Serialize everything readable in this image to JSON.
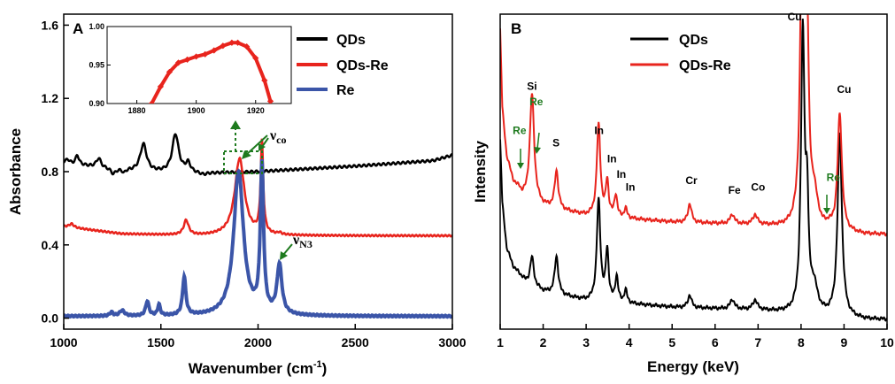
{
  "colors": {
    "black": "#000000",
    "red": "#e8241d",
    "blue": "#3b55a8",
    "green": "#1e7a1e"
  },
  "chart_data": [
    {
      "panel": "A",
      "type": "line",
      "xlabel": "Wavenumber (cm",
      "xlabel_sup": "-1",
      "xlabel_end": ")",
      "ylabel": "Absorbance",
      "xlim": [
        1000,
        3000
      ],
      "ylim": [
        -0.06,
        1.66
      ],
      "xticks": [
        "1000",
        "1500",
        "2000",
        "2500",
        "3000"
      ],
      "yticks": [
        "0.0",
        "0.4",
        "0.8",
        "1.2",
        "1.6"
      ],
      "legend_position": "top-right",
      "series": [
        {
          "name": "QDs",
          "color": "#000000",
          "baseline": [
            [
              1000,
              0.85
            ],
            [
              1200,
              0.82
            ],
            [
              1400,
              0.8
            ],
            [
              1700,
              0.79
            ],
            [
              2000,
              0.8
            ],
            [
              2500,
              0.83
            ],
            [
              2900,
              0.86
            ],
            [
              3000,
              0.89
            ]
          ],
          "peaks": [
            [
              1020,
              0.02,
              10
            ],
            [
              1070,
              0.05,
              10
            ],
            [
              1180,
              0.05,
              15
            ],
            [
              1255,
              -0.03,
              15
            ],
            [
              1310,
              -0.02,
              10
            ],
            [
              1410,
              0.15,
              20
            ],
            [
              1575,
              0.21,
              20
            ],
            [
              1640,
              0.05,
              15
            ],
            [
              1720,
              -0.01,
              20
            ]
          ]
        },
        {
          "name": "QDs-Re",
          "color": "#e8241d",
          "baseline": [
            [
              1000,
              0.5
            ],
            [
              1150,
              0.48
            ],
            [
              1300,
              0.46
            ],
            [
              1700,
              0.45
            ],
            [
              2300,
              0.45
            ],
            [
              3000,
              0.45
            ]
          ],
          "peaks": [
            [
              1040,
              0.02,
              15
            ],
            [
              1630,
              0.08,
              15
            ],
            [
              1905,
              0.42,
              30
            ],
            [
              2020,
              0.5,
              8
            ],
            [
              2110,
              0.01,
              10
            ]
          ]
        },
        {
          "name": "Re",
          "color": "#3b55a8",
          "baseline": [
            [
              1000,
              0.01
            ],
            [
              3000,
              0.01
            ]
          ],
          "peaks": [
            [
              1245,
              0.02,
              10
            ],
            [
              1300,
              0.03,
              15
            ],
            [
              1430,
              0.08,
              10
            ],
            [
              1490,
              0.06,
              8
            ],
            [
              1620,
              0.21,
              10
            ],
            [
              1900,
              0.79,
              30
            ],
            [
              2020,
              0.8,
              10
            ],
            [
              2110,
              0.27,
              15
            ]
          ]
        }
      ],
      "annotations": {
        "nu_co": "ν",
        "nu_co_sub": "co",
        "nu_n3": "ν",
        "nu_n3_sub": "N3"
      },
      "inset": {
        "type": "scatter",
        "xlim": [
          1870,
          1932
        ],
        "ylim": [
          0.9,
          1.0
        ],
        "xticks": [
          "1880",
          "1900",
          "1920"
        ],
        "yticks": [
          "0.90",
          "0.95",
          "1.00"
        ],
        "x": [
          1885,
          1888,
          1891,
          1894,
          1897,
          1900,
          1903,
          1906,
          1909,
          1912,
          1914,
          1917,
          1920,
          1923,
          1925
        ],
        "y": [
          0.9,
          0.922,
          0.941,
          0.953,
          0.957,
          0.961,
          0.964,
          0.969,
          0.975,
          0.979,
          0.979,
          0.974,
          0.959,
          0.93,
          0.903
        ]
      }
    },
    {
      "panel": "B",
      "type": "line",
      "xlabel": "Energy (keV)",
      "ylabel": "Intensity",
      "xlim": [
        1,
        10
      ],
      "ylim": [
        0,
        100
      ],
      "xticks": [
        "1",
        "2",
        "3",
        "4",
        "5",
        "6",
        "7",
        "8",
        "9",
        "10"
      ],
      "legend_position": "top-center",
      "series": [
        {
          "name": "QDs",
          "color": "#000000",
          "baseline": [
            [
              1.0,
              60
            ],
            [
              1.05,
              40
            ],
            [
              1.15,
              26
            ],
            [
              1.3,
              20
            ],
            [
              1.6,
              15
            ],
            [
              2.0,
              12
            ],
            [
              3.0,
              9
            ],
            [
              5.0,
              7
            ],
            [
              7.0,
              6
            ],
            [
              7.7,
              5
            ],
            [
              8.5,
              4
            ],
            [
              9.5,
              3
            ],
            [
              10.0,
              3
            ]
          ],
          "peaks": [
            [
              1.74,
              9,
              0.05
            ],
            [
              2.31,
              12,
              0.05
            ],
            [
              3.29,
              32,
              0.05
            ],
            [
              3.49,
              16,
              0.04
            ],
            [
              3.71,
              8,
              0.04
            ],
            [
              3.92,
              4,
              0.04
            ],
            [
              5.41,
              4,
              0.05
            ],
            [
              6.4,
              3,
              0.06
            ],
            [
              6.93,
              3,
              0.06
            ],
            [
              8.04,
              88,
              0.05
            ],
            [
              8.14,
              30,
              0.04
            ],
            [
              8.9,
              58,
              0.06
            ],
            [
              8.3,
              8,
              0.1
            ]
          ]
        },
        {
          "name": "QDs-Re",
          "color": "#e8241d",
          "baseline": [
            [
              1.0,
              95
            ],
            [
              1.05,
              70
            ],
            [
              1.15,
              55
            ],
            [
              1.3,
              47
            ],
            [
              1.5,
              42
            ],
            [
              2.0,
              39
            ],
            [
              3.0,
              36
            ],
            [
              5.0,
              34
            ],
            [
              7.0,
              33
            ],
            [
              7.7,
              32
            ],
            [
              8.5,
              31
            ],
            [
              9.5,
              30
            ],
            [
              10.0,
              30
            ]
          ],
          "peaks": [
            [
              1.45,
              1,
              0.05
            ],
            [
              1.74,
              34,
              0.06
            ],
            [
              2.31,
              12,
              0.05
            ],
            [
              3.29,
              29,
              0.05
            ],
            [
              3.49,
              11,
              0.04
            ],
            [
              3.69,
              7,
              0.04
            ],
            [
              3.92,
              3,
              0.04
            ],
            [
              5.41,
              6,
              0.05
            ],
            [
              6.4,
              3,
              0.06
            ],
            [
              6.93,
              3,
              0.06
            ],
            [
              8.04,
              140,
              0.05
            ],
            [
              8.15,
              45,
              0.04
            ],
            [
              8.3,
              10,
              0.1
            ],
            [
              8.65,
              1,
              0.05
            ],
            [
              8.9,
              37,
              0.06
            ]
          ]
        }
      ],
      "peak_labels": [
        {
          "text": "Si",
          "x": 1.74,
          "level": 76,
          "green": false
        },
        {
          "text": "Re",
          "x": 1.84,
          "level": 71,
          "green": true
        },
        {
          "text": "Re",
          "x": 1.45,
          "level": 62,
          "green": true
        },
        {
          "text": "S",
          "x": 2.3,
          "level": 58,
          "green": false
        },
        {
          "text": "In",
          "x": 3.3,
          "level": 62,
          "green": false
        },
        {
          "text": "In",
          "x": 3.6,
          "level": 53,
          "green": false
        },
        {
          "text": "In",
          "x": 3.82,
          "level": 48,
          "green": false
        },
        {
          "text": "In",
          "x": 4.03,
          "level": 44,
          "green": false
        },
        {
          "text": "Cr",
          "x": 5.45,
          "level": 46,
          "green": false
        },
        {
          "text": "Fe",
          "x": 6.45,
          "level": 43,
          "green": false
        },
        {
          "text": "Co",
          "x": 7.0,
          "level": 44,
          "green": false
        },
        {
          "text": "Cu",
          "x": 7.85,
          "level": 98,
          "green": false
        },
        {
          "text": "Cu",
          "x": 9.0,
          "level": 75,
          "green": false
        },
        {
          "text": "Re",
          "x": 8.75,
          "level": 47,
          "green": true
        }
      ]
    }
  ]
}
